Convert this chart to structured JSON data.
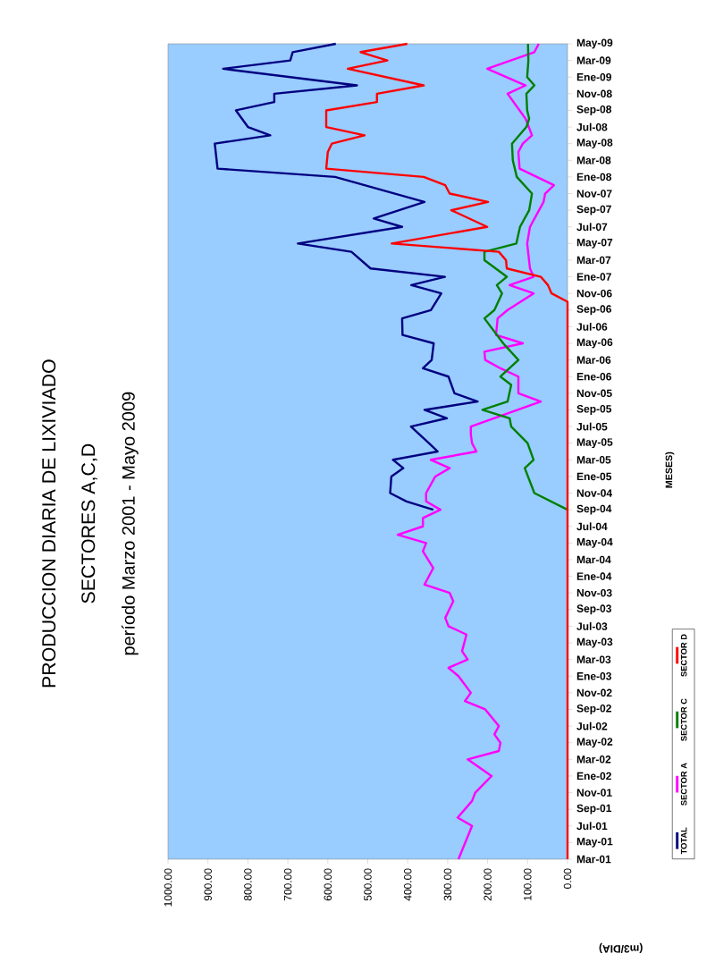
{
  "chart_data": {
    "type": "line",
    "title": "PRODUCCION DIARIA DE LIXIVIADO",
    "subtitle": "SECTORES A,C,D",
    "annotations": [
      "período Marzo 2001 - Mayo 2009",
      "MESES)"
    ],
    "ylabel": "(m3/DIA)",
    "legend": "bottom",
    "orientation": "horizontal",
    "ylim": [
      "2001-03",
      "2009-05"
    ],
    "xlim": [
      1000,
      0
    ],
    "xticks": [
      {
        "value": 0,
        "label": "0.00"
      },
      {
        "value": 100,
        "label": "100.00"
      },
      {
        "value": 200,
        "label": "200.00"
      },
      {
        "value": 300,
        "label": "300.00"
      },
      {
        "value": 400,
        "label": "400.00"
      },
      {
        "value": 500,
        "label": "500.00"
      },
      {
        "value": 600,
        "label": "600.00"
      },
      {
        "value": 700,
        "label": "700.00"
      },
      {
        "value": 800,
        "label": "800.00"
      },
      {
        "value": 900,
        "label": "900.00"
      },
      {
        "value": 1000,
        "label": "1000.00"
      }
    ],
    "yticks": [
      {
        "value": "2001-03",
        "label": "Mar-01"
      },
      {
        "value": "2001-05",
        "label": "May-01"
      },
      {
        "value": "2001-07",
        "label": "Jul-01"
      },
      {
        "value": "2001-09",
        "label": "Sep-01"
      },
      {
        "value": "2001-11",
        "label": "Nov-01"
      },
      {
        "value": "2002-01",
        "label": "Ene-02"
      },
      {
        "value": "2002-03",
        "label": "Mar-02"
      },
      {
        "value": "2002-05",
        "label": "May-02"
      },
      {
        "value": "2002-07",
        "label": "Jul-02"
      },
      {
        "value": "2002-09",
        "label": "Sep-02"
      },
      {
        "value": "2002-11",
        "label": "Nov-02"
      },
      {
        "value": "2003-01",
        "label": "Ene-03"
      },
      {
        "value": "2003-03",
        "label": "Mar-03"
      },
      {
        "value": "2003-05",
        "label": "May-03"
      },
      {
        "value": "2003-07",
        "label": "Jul-03"
      },
      {
        "value": "2003-09",
        "label": "Sep-03"
      },
      {
        "value": "2003-11",
        "label": "Nov-03"
      },
      {
        "value": "2004-01",
        "label": "Ene-04"
      },
      {
        "value": "2004-03",
        "label": "Mar-04"
      },
      {
        "value": "2004-05",
        "label": "May-04"
      },
      {
        "value": "2004-07",
        "label": "Jul-04"
      },
      {
        "value": "2004-09",
        "label": "Sep-04"
      },
      {
        "value": "2004-11",
        "label": "Nov-04"
      },
      {
        "value": "2005-01",
        "label": "Ene-05"
      },
      {
        "value": "2005-03",
        "label": "Mar-05"
      },
      {
        "value": "2005-05",
        "label": "May-05"
      },
      {
        "value": "2005-07",
        "label": "Jul-05"
      },
      {
        "value": "2005-09",
        "label": "Sep-05"
      },
      {
        "value": "2005-11",
        "label": "Nov-05"
      },
      {
        "value": "2006-01",
        "label": "Ene-06"
      },
      {
        "value": "2006-03",
        "label": "Mar-06"
      },
      {
        "value": "2006-05",
        "label": "May-06"
      },
      {
        "value": "2006-07",
        "label": "Jul-06"
      },
      {
        "value": "2006-09",
        "label": "Sep-06"
      },
      {
        "value": "2006-11",
        "label": "Nov-06"
      },
      {
        "value": "2007-01",
        "label": "Ene-07"
      },
      {
        "value": "2007-03",
        "label": "Mar-07"
      },
      {
        "value": "2007-05",
        "label": "May-07"
      },
      {
        "value": "2007-07",
        "label": "Jul-07"
      },
      {
        "value": "2007-09",
        "label": "Sep-07"
      },
      {
        "value": "2007-11",
        "label": "Nov-07"
      },
      {
        "value": "2008-01",
        "label": "Ene-08"
      },
      {
        "value": "2008-03",
        "label": "Mar-08"
      },
      {
        "value": "2008-05",
        "label": "May-08"
      },
      {
        "value": "2008-07",
        "label": "Jul-08"
      },
      {
        "value": "2008-09",
        "label": "Sep-08"
      },
      {
        "value": "2008-11",
        "label": "Nov-08"
      },
      {
        "value": "2009-01",
        "label": "Ene-09"
      },
      {
        "value": "2009-03",
        "label": "Mar-09"
      },
      {
        "value": "2009-05",
        "label": "May-09"
      }
    ],
    "series": [
      {
        "name": "TOTAL",
        "color": "#000080",
        "x": [
          "2004-09",
          "2004-10",
          "2004-11",
          "2005-01",
          "2005-02",
          "2005-03",
          "2005-04",
          "2005-05",
          "2005-07",
          "2005-08",
          "2005-09",
          "2005-10",
          "2005-11",
          "2006-01",
          "2006-02",
          "2006-03",
          "2006-05",
          "2006-06",
          "2006-08",
          "2006-09",
          "2006-11",
          "2006-12",
          "2007-01",
          "2007-02",
          "2007-04",
          "2007-05",
          "2007-07",
          "2007-08",
          "2007-10",
          "2008-01",
          "2008-02",
          "2008-05",
          "2008-06",
          "2008-07",
          "2008-09",
          "2008-10",
          "2008-11",
          "2008-12",
          "2009-02",
          "2009-03",
          "2009-04",
          "2009-05"
        ],
        "values": [
          336,
          403,
          444,
          441,
          411,
          437,
          325,
          347,
          392,
          302,
          358,
          225,
          283,
          298,
          362,
          340,
          335,
          413,
          414,
          342,
          316,
          391,
          307,
          493,
          541,
          675,
          414,
          485,
          358,
          582,
          876,
          883,
          744,
          800,
          830,
          734,
          734,
          527,
          862,
          694,
          688,
          580
        ]
      },
      {
        "name": "SECTOR A",
        "color": "#ff00ff",
        "x": [
          "2001-03",
          "2001-07",
          "2001-08",
          "2001-10",
          "2001-11",
          "2002-01",
          "2002-03",
          "2002-04",
          "2002-05",
          "2002-06",
          "2002-07",
          "2002-09",
          "2002-10",
          "2002-11",
          "2003-01",
          "2003-02",
          "2003-03",
          "2003-04",
          "2003-06",
          "2003-07",
          "2003-08",
          "2003-10",
          "2003-11",
          "2003-12",
          "2004-02",
          "2004-04",
          "2004-05",
          "2004-06",
          "2004-07",
          "2004-08",
          "2004-09",
          "2004-10",
          "2004-11",
          "2005-01",
          "2005-02",
          "2005-03",
          "2005-04",
          "2005-05",
          "2005-06",
          "2005-07",
          "2005-10",
          "2005-11",
          "2006-01",
          "2006-02",
          "2006-03",
          "2006-04",
          "2006-05",
          "2006-06",
          "2006-08",
          "2006-09",
          "2006-11",
          "2006-12",
          "2007-01",
          "2007-02",
          "2007-05",
          "2007-07",
          "2007-10",
          "2007-11",
          "2007-12",
          "2008-02",
          "2008-04",
          "2008-05",
          "2008-06",
          "2008-08",
          "2008-11",
          "2008-12",
          "2009-02",
          "2009-04",
          "2009-05"
        ],
        "values": [
          273,
          239,
          275,
          239,
          231,
          190,
          250,
          172,
          168,
          183,
          172,
          206,
          257,
          242,
          273,
          298,
          250,
          264,
          253,
          298,
          306,
          286,
          295,
          358,
          336,
          362,
          354,
          425,
          362,
          362,
          318,
          354,
          354,
          331,
          295,
          342,
          228,
          239,
          242,
          242,
          67,
          123,
          123,
          168,
          206,
          208,
          112,
          179,
          175,
          150,
          85,
          145,
          85,
          94,
          101,
          94,
          60,
          56,
          34,
          120,
          123,
          112,
          89,
          105,
          150,
          105,
          201,
          83,
          72
        ]
      },
      {
        "name": "SECTOR C",
        "color": "#008000",
        "x": [
          "2004-09",
          "2004-11",
          "2005-02",
          "2005-03",
          "2005-05",
          "2005-07",
          "2005-08",
          "2005-09",
          "2005-10",
          "2005-12",
          "2006-01",
          "2006-03",
          "2006-05",
          "2006-08",
          "2006-09",
          "2006-11",
          "2006-12",
          "2007-01",
          "2007-03",
          "2007-04",
          "2007-05",
          "2007-07",
          "2007-09",
          "2007-11",
          "2008-01",
          "2008-03",
          "2008-05",
          "2008-07",
          "2008-08",
          "2008-09",
          "2008-11",
          "2008-12",
          "2009-01",
          "2009-03",
          "2009-05"
        ],
        "values": [
          0,
          83,
          107,
          85,
          100,
          141,
          145,
          213,
          150,
          141,
          168,
          123,
          161,
          208,
          183,
          164,
          177,
          152,
          208,
          208,
          128,
          119,
          96,
          89,
          127,
          137,
          139,
          103,
          96,
          101,
          103,
          83,
          101,
          98,
          99
        ]
      },
      {
        "name": "SECTOR D",
        "color": "#ff0000",
        "x": [
          "2001-03",
          "2006-10",
          "2006-11",
          "2006-12",
          "2007-01",
          "2007-02",
          "2007-03",
          "2007-04",
          "2007-05",
          "2007-07",
          "2007-09",
          "2007-10",
          "2007-11",
          "2007-12",
          "2008-01",
          "2008-02",
          "2008-04",
          "2008-05",
          "2008-06",
          "2008-07",
          "2008-09",
          "2008-10",
          "2008-11",
          "2008-12",
          "2009-02",
          "2009-03",
          "2009-04",
          "2009-05"
        ],
        "values": [
          0,
          0,
          40,
          49,
          67,
          152,
          154,
          172,
          440,
          201,
          291,
          199,
          295,
          306,
          360,
          604,
          600,
          590,
          508,
          604,
          604,
          477,
          477,
          360,
          550,
          451,
          518,
          401
        ]
      }
    ]
  }
}
